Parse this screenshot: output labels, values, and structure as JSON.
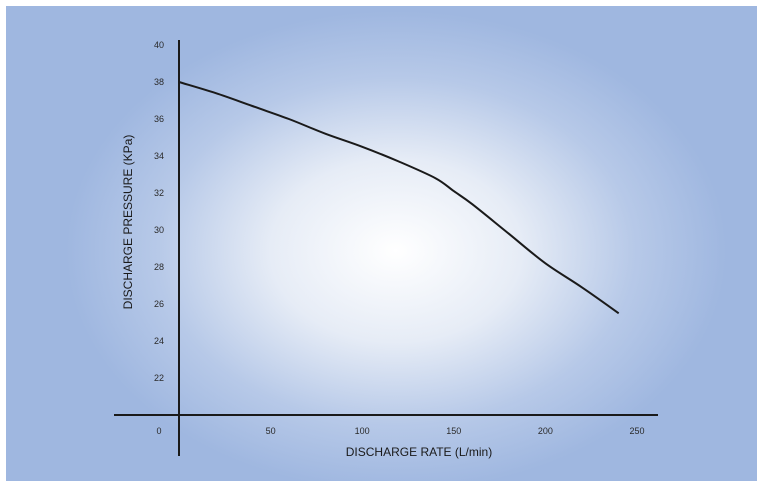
{
  "chart_data": {
    "type": "line",
    "title": "",
    "xlabel": "DISCHARGE RATE (L/min)",
    "ylabel": "DISCHARGE PRESSURE (KPa)",
    "xlim": [
      0,
      250
    ],
    "ylim": [
      20,
      40
    ],
    "x_ticks": [
      0,
      50,
      100,
      150,
      200,
      250
    ],
    "y_ticks": [
      22,
      24,
      26,
      28,
      30,
      32,
      34,
      36,
      38,
      40
    ],
    "grid": false,
    "legend": "none",
    "series": [
      {
        "x": [
          0,
          20,
          40,
          60,
          80,
          100,
          120,
          140,
          150,
          160,
          180,
          200,
          220,
          240
        ],
        "y": [
          38.0,
          37.4,
          36.7,
          36.0,
          35.2,
          34.5,
          33.7,
          32.8,
          32.1,
          31.4,
          29.8,
          28.2,
          26.9,
          25.5
        ]
      }
    ],
    "colors": {
      "line": "#1a1a1a",
      "axis": "#1a1a1a"
    }
  }
}
